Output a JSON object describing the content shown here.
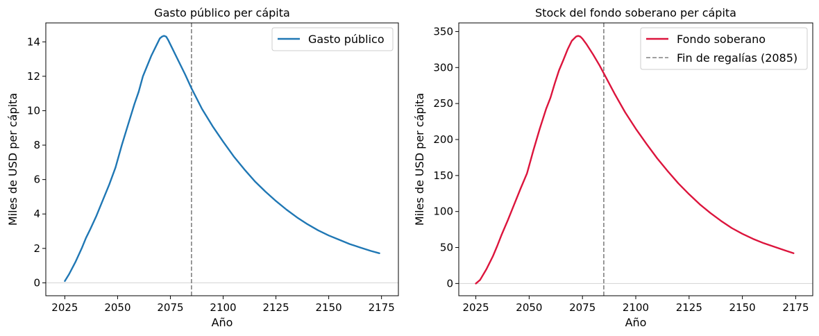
{
  "chart_data": [
    {
      "type": "line",
      "title": "Gasto público per cápita",
      "xlabel": "Año",
      "ylabel": "Miles de USD per cápita",
      "xlim": [
        2016,
        2183
      ],
      "ylim": [
        -0.75,
        15.1
      ],
      "xticks": [
        2025,
        2050,
        2075,
        2100,
        2125,
        2150,
        2175
      ],
      "yticks": [
        0,
        2,
        4,
        6,
        8,
        10,
        12,
        14
      ],
      "grid": false,
      "legend": "top-right",
      "baseline": 0,
      "baseline_color": "#d3d3d3",
      "vline": {
        "x": 2085,
        "color": "#808080",
        "style": "dashed"
      },
      "series": [
        {
          "name": "Gasto público",
          "color": "#1f77b4",
          "x": [
            2025,
            2027,
            2030,
            2033,
            2035,
            2037,
            2040,
            2043,
            2046,
            2049,
            2052,
            2055,
            2058,
            2060,
            2062,
            2064,
            2066,
            2068,
            2070,
            2071,
            2072,
            2073,
            2074,
            2076,
            2078,
            2080,
            2082,
            2085,
            2090,
            2095,
            2100,
            2105,
            2110,
            2115,
            2120,
            2125,
            2130,
            2135,
            2140,
            2145,
            2150,
            2155,
            2160,
            2165,
            2170,
            2174
          ],
          "y": [
            0.1,
            0.5,
            1.2,
            2.0,
            2.6,
            3.1,
            3.9,
            4.8,
            5.7,
            6.7,
            8.0,
            9.2,
            10.4,
            11.1,
            12.0,
            12.6,
            13.2,
            13.7,
            14.2,
            14.3,
            14.35,
            14.3,
            14.1,
            13.6,
            13.1,
            12.6,
            12.1,
            11.3,
            10.1,
            9.1,
            8.2,
            7.35,
            6.6,
            5.9,
            5.3,
            4.75,
            4.25,
            3.8,
            3.4,
            3.05,
            2.75,
            2.5,
            2.25,
            2.05,
            1.85,
            1.72
          ]
        }
      ]
    },
    {
      "type": "line",
      "title": "Stock del fondo soberano per cápita",
      "xlabel": "Año",
      "ylabel": "Miles de USD per cápita",
      "xlim": [
        2017,
        2183
      ],
      "ylim": [
        -17,
        362
      ],
      "xticks": [
        2025,
        2050,
        2075,
        2100,
        2125,
        2150,
        2175
      ],
      "yticks": [
        0,
        50,
        100,
        150,
        200,
        250,
        300,
        350
      ],
      "grid": false,
      "legend": "top-right",
      "baseline": 0,
      "baseline_color": "#d3d3d3",
      "vline": {
        "x": 2085,
        "color": "#808080",
        "style": "dashed"
      },
      "series": [
        {
          "name": "Fondo soberano",
          "color": "#dc143c",
          "x": [
            2025,
            2027,
            2030,
            2033,
            2035,
            2037,
            2040,
            2043,
            2046,
            2049,
            2052,
            2055,
            2058,
            2060,
            2062,
            2064,
            2066,
            2068,
            2070,
            2072,
            2073,
            2074,
            2075,
            2077,
            2080,
            2083,
            2085,
            2090,
            2095,
            2100,
            2105,
            2110,
            2115,
            2120,
            2125,
            2130,
            2135,
            2140,
            2145,
            2150,
            2155,
            2160,
            2165,
            2170,
            2174
          ],
          "y": [
            0,
            5,
            20,
            38,
            52,
            67,
            88,
            110,
            132,
            153,
            185,
            215,
            243,
            258,
            278,
            296,
            310,
            325,
            337,
            343,
            344,
            343,
            340,
            332,
            318,
            303,
            292,
            264,
            238,
            215,
            194,
            174,
            156,
            139,
            124,
            110,
            98,
            87,
            77,
            69,
            62,
            56,
            51,
            46,
            42
          ]
        },
        {
          "name": "Fin de regalías (2085)",
          "color": "#808080",
          "style": "dashed",
          "legend_only": true
        }
      ]
    }
  ]
}
